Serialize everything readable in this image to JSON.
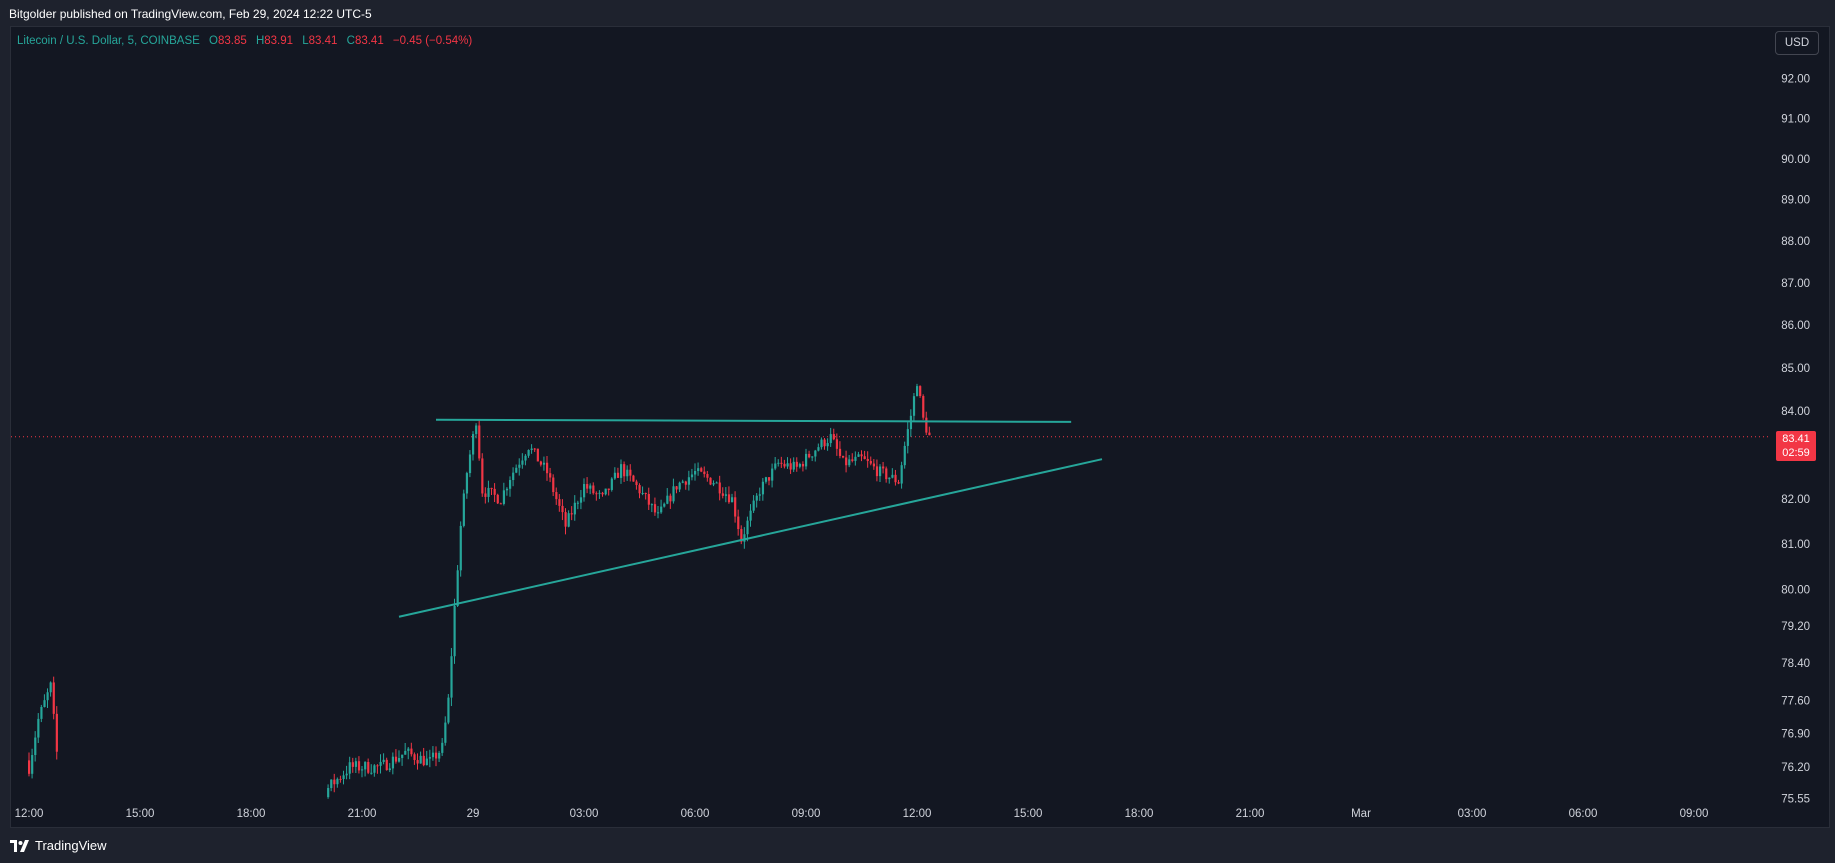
{
  "header": {
    "published": "Bitgolder published on TradingView.com, Feb 29, 2024 12:22 UTC-5"
  },
  "legend": {
    "symbol": "Litecoin / U.S. Dollar, 5, COINBASE",
    "o_label": "O",
    "o_value": "83.85",
    "h_label": "H",
    "h_value": "83.91",
    "l_label": "L",
    "l_value": "83.41",
    "c_label": "C",
    "c_value": "83.41",
    "change": "−0.45 (−0.54%)"
  },
  "currency_button": "USD",
  "last_price": {
    "value": "83.41",
    "countdown": "02:59",
    "color": "#f23645"
  },
  "footer": {
    "brand": "TradingView"
  },
  "colors": {
    "up": "#26a69a",
    "down": "#f23645",
    "trendline": "#26a69a",
    "axis_text": "#d1d4dc"
  },
  "chart_data": {
    "type": "candlestick",
    "title": "Litecoin / U.S. Dollar, 5, COINBASE",
    "x_ticks": [
      "12:00",
      "15:00",
      "18:00",
      "21:00",
      "29",
      "03:00",
      "06:00",
      "09:00",
      "12:00",
      "15:00",
      "18:00",
      "21:00",
      "Mar",
      "03:00",
      "06:00",
      "09:00"
    ],
    "y_ticks": [
      "92.00",
      "91.00",
      "90.00",
      "89.00",
      "88.00",
      "87.00",
      "86.00",
      "85.00",
      "84.00",
      "82.00",
      "81.00",
      "80.00",
      "79.20",
      "78.40",
      "77.60",
      "76.90",
      "76.20",
      "75.55"
    ],
    "y_scale": "log",
    "y_range": [
      75.5,
      93.0
    ],
    "last_price": 83.41,
    "trendlines": [
      {
        "from": [
          "Feb 28 23:00",
          83.8
        ],
        "to": [
          "Feb 29 16:10",
          83.75
        ]
      },
      {
        "from": [
          "Feb 28 22:00",
          79.4
        ],
        "to": [
          "Feb 29 17:00",
          82.9
        ]
      }
    ],
    "price_path": [
      [
        "Feb 28 12:00",
        76.2
      ],
      [
        "Feb 28 12:15",
        77.2
      ],
      [
        "Feb 28 12:35",
        77.9
      ],
      [
        "Feb 28 12:45",
        76.5
      ],
      [
        "Feb 28 12:50",
        75.5
      ],
      [
        "Feb 28 19:40",
        75.5
      ],
      [
        "Feb 28 20:00",
        75.7
      ],
      [
        "Feb 28 20:40",
        76.2
      ],
      [
        "Feb 28 21:30",
        76.2
      ],
      [
        "Feb 28 22:10",
        76.5
      ],
      [
        "Feb 28 22:50",
        76.3
      ],
      [
        "Feb 28 23:10",
        76.6
      ],
      [
        "Feb 28 23:20",
        77.6
      ],
      [
        "Feb 28 23:30",
        79.6
      ],
      [
        "Feb 28 23:40",
        81.4
      ],
      [
        "Feb 28 23:50",
        82.6
      ],
      [
        "Feb 29 00:05",
        83.8
      ],
      [
        "Feb 29 00:15",
        82.2
      ],
      [
        "Feb 29 00:45",
        82.0
      ],
      [
        "Feb 29 01:00",
        82.5
      ],
      [
        "Feb 29 01:30",
        83.2
      ],
      [
        "Feb 29 02:00",
        82.6
      ],
      [
        "Feb 29 02:30",
        81.4
      ],
      [
        "Feb 29 03:00",
        82.3
      ],
      [
        "Feb 29 03:30",
        82.0
      ],
      [
        "Feb 29 04:00",
        82.7
      ],
      [
        "Feb 29 04:30",
        82.2
      ],
      [
        "Feb 29 05:00",
        81.6
      ],
      [
        "Feb 29 05:30",
        82.3
      ],
      [
        "Feb 29 06:00",
        82.6
      ],
      [
        "Feb 29 06:30",
        82.4
      ],
      [
        "Feb 29 07:00",
        82.0
      ],
      [
        "Feb 29 07:15",
        81.1
      ],
      [
        "Feb 29 07:45",
        82.2
      ],
      [
        "Feb 29 08:15",
        82.8
      ],
      [
        "Feb 29 08:45",
        82.7
      ],
      [
        "Feb 29 09:20",
        83.2
      ],
      [
        "Feb 29 09:40",
        83.4
      ],
      [
        "Feb 29 10:00",
        82.8
      ],
      [
        "Feb 29 10:30",
        82.9
      ],
      [
        "Feb 29 11:00",
        82.6
      ],
      [
        "Feb 29 11:30",
        82.4
      ],
      [
        "Feb 29 11:40",
        83.2
      ],
      [
        "Feb 29 11:50",
        83.9
      ],
      [
        "Feb 29 12:00",
        84.7
      ],
      [
        "Feb 29 12:10",
        83.8
      ],
      [
        "Feb 29 12:20",
        83.41
      ]
    ]
  }
}
